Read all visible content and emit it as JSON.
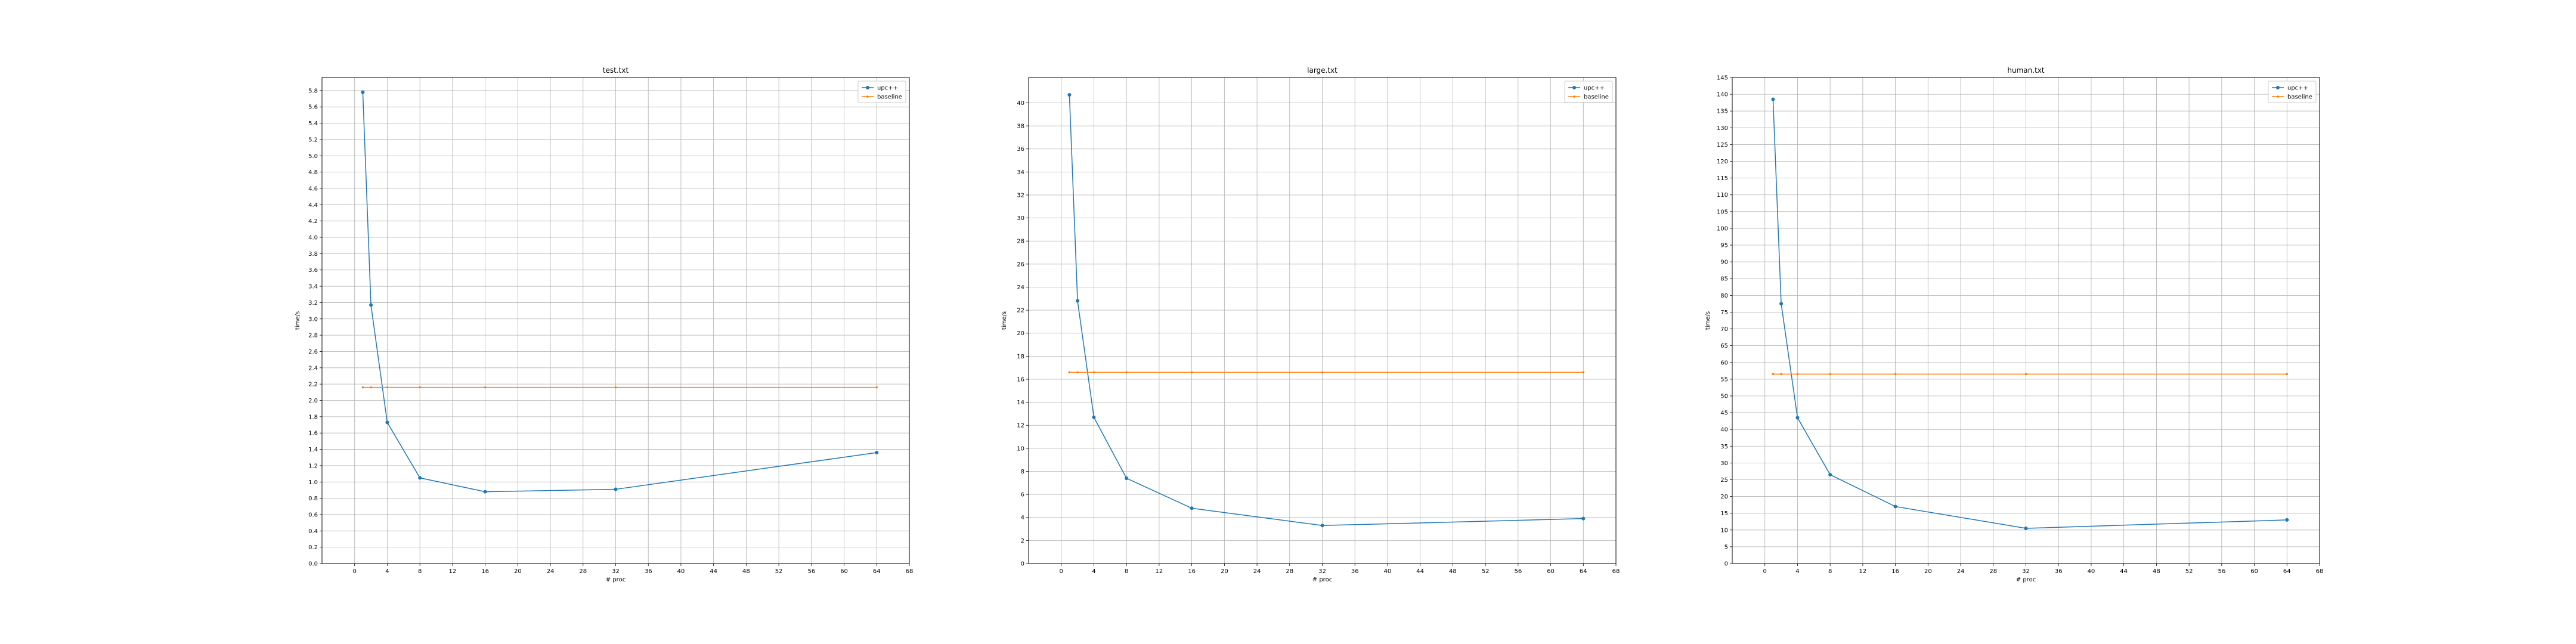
{
  "chart_data": [
    {
      "type": "line",
      "title": "test.txt",
      "xlabel": "# proc",
      "ylabel": "time/s",
      "xlim": [
        -4,
        68
      ],
      "ylim": [
        0,
        5.96
      ],
      "xticks": [
        0,
        4,
        8,
        12,
        16,
        20,
        24,
        28,
        32,
        36,
        40,
        44,
        48,
        52,
        56,
        60,
        64,
        68
      ],
      "xtick_labels": [
        "0",
        "4",
        "8",
        "12",
        "16",
        "20",
        "24",
        "28",
        "32",
        "36",
        "40",
        "44",
        "48",
        "52",
        "56",
        "60",
        "64",
        "68"
      ],
      "yticks": [
        0.0,
        0.2,
        0.4,
        0.6,
        0.8,
        1.0,
        1.2,
        1.4,
        1.6,
        1.8,
        2.0,
        2.2,
        2.4,
        2.6,
        2.8,
        3.0,
        3.2,
        3.4,
        3.6,
        3.8,
        4.0,
        4.2,
        4.4,
        4.6,
        4.8,
        5.0,
        5.2,
        5.4,
        5.6,
        5.8
      ],
      "ytick_labels": [
        "0.0",
        "0.2",
        "0.4",
        "0.6",
        "0.8",
        "1.0",
        "1.2",
        "1.4",
        "1.6",
        "1.8",
        "2.0",
        "2.2",
        "2.4",
        "2.6",
        "2.8",
        "3.0",
        "3.2",
        "3.4",
        "3.6",
        "3.8",
        "4.0",
        "4.2",
        "4.4",
        "4.6",
        "4.8",
        "5.0",
        "5.2",
        "5.4",
        "5.6",
        "5.8"
      ],
      "grid": true,
      "legend_position": "top-right",
      "x": [
        1,
        2,
        4,
        8,
        16,
        32,
        64
      ],
      "series": [
        {
          "name": "upc++",
          "color": "#1f77b4",
          "values": [
            5.78,
            3.17,
            1.73,
            1.05,
            0.88,
            0.91,
            1.36
          ]
        },
        {
          "name": "baseline",
          "color": "#ff7f0e",
          "values": [
            2.16,
            2.16,
            2.16,
            2.16,
            2.16,
            2.16,
            2.16
          ]
        }
      ]
    },
    {
      "type": "line",
      "title": "large.txt",
      "xlabel": "# proc",
      "ylabel": "time/s",
      "xlim": [
        -4,
        68
      ],
      "ylim": [
        0,
        42.2
      ],
      "xticks": [
        0,
        4,
        8,
        12,
        16,
        20,
        24,
        28,
        32,
        36,
        40,
        44,
        48,
        52,
        56,
        60,
        64,
        68
      ],
      "xtick_labels": [
        "0",
        "4",
        "8",
        "12",
        "16",
        "20",
        "24",
        "28",
        "32",
        "36",
        "40",
        "44",
        "48",
        "52",
        "56",
        "60",
        "64",
        "68"
      ],
      "yticks": [
        0,
        2,
        4,
        6,
        8,
        10,
        12,
        14,
        16,
        18,
        20,
        22,
        24,
        26,
        28,
        30,
        32,
        34,
        36,
        38,
        40
      ],
      "ytick_labels": [
        "0",
        "2",
        "4",
        "6",
        "8",
        "10",
        "12",
        "14",
        "16",
        "18",
        "20",
        "22",
        "24",
        "26",
        "28",
        "30",
        "32",
        "34",
        "36",
        "38",
        "40"
      ],
      "grid": true,
      "legend_position": "top-right",
      "x": [
        1,
        2,
        4,
        8,
        16,
        32,
        64
      ],
      "series": [
        {
          "name": "upc++",
          "color": "#1f77b4",
          "values": [
            40.7,
            22.8,
            12.7,
            7.4,
            4.8,
            3.3,
            3.9
          ]
        },
        {
          "name": "baseline",
          "color": "#ff7f0e",
          "values": [
            16.6,
            16.6,
            16.6,
            16.6,
            16.6,
            16.6,
            16.6
          ]
        }
      ]
    },
    {
      "type": "line",
      "title": "human.txt",
      "xlabel": "# proc",
      "ylabel": "time/s",
      "xlim": [
        -4,
        68
      ],
      "ylim": [
        0,
        145
      ],
      "xticks": [
        0,
        4,
        8,
        12,
        16,
        20,
        24,
        28,
        32,
        36,
        40,
        44,
        48,
        52,
        56,
        60,
        64,
        68
      ],
      "xtick_labels": [
        "0",
        "4",
        "8",
        "12",
        "16",
        "20",
        "24",
        "28",
        "32",
        "36",
        "40",
        "44",
        "48",
        "52",
        "56",
        "60",
        "64",
        "68"
      ],
      "yticks": [
        0,
        5,
        10,
        15,
        20,
        25,
        30,
        35,
        40,
        45,
        50,
        55,
        60,
        65,
        70,
        75,
        80,
        85,
        90,
        95,
        100,
        105,
        110,
        115,
        120,
        125,
        130,
        135,
        140,
        145
      ],
      "ytick_labels": [
        "0",
        "5",
        "10",
        "15",
        "20",
        "25",
        "30",
        "35",
        "40",
        "45",
        "50",
        "55",
        "60",
        "65",
        "70",
        "75",
        "80",
        "85",
        "90",
        "95",
        "100",
        "105",
        "110",
        "115",
        "120",
        "125",
        "130",
        "135",
        "140",
        "145"
      ],
      "grid": true,
      "legend_position": "top-right",
      "x": [
        1,
        2,
        4,
        8,
        16,
        32,
        64
      ],
      "series": [
        {
          "name": "upc++",
          "color": "#1f77b4",
          "values": [
            138.5,
            77.5,
            43.5,
            26.5,
            17.0,
            10.5,
            13.0
          ]
        },
        {
          "name": "baseline",
          "color": "#ff7f0e",
          "values": [
            56.5,
            56.5,
            56.5,
            56.5,
            56.5,
            56.5,
            56.5
          ]
        }
      ]
    }
  ]
}
